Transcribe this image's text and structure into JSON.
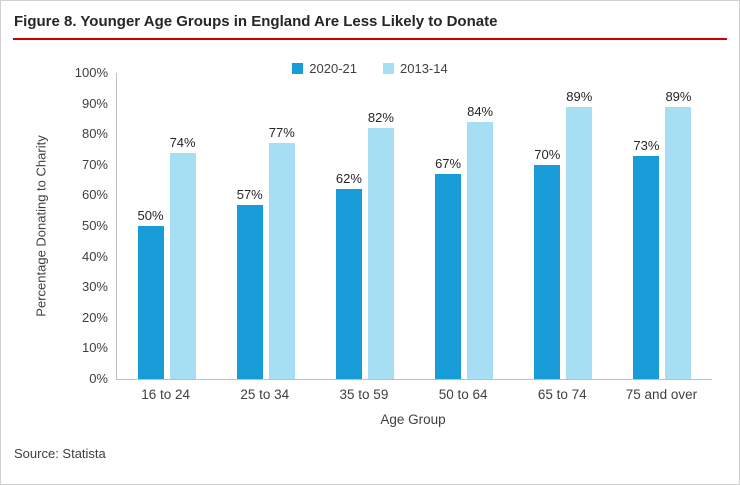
{
  "title": "Figure 8. Younger Age Groups in England Are Less Likely to Donate",
  "source": "Source: Statista",
  "colors": {
    "series1": "#189CD8",
    "series2": "#A6DFF4",
    "divider": "#CC0000",
    "axis": "#BFBFBF",
    "text": "#404040",
    "title_text": "#262626"
  },
  "chart_data": {
    "type": "bar",
    "title": "",
    "categories": [
      "16 to 24",
      "25 to 34",
      "35 to 59",
      "50 to 64",
      "65 to 74",
      "75 and over"
    ],
    "series": [
      {
        "name": "2020-21",
        "values": [
          50,
          57,
          62,
          67,
          70,
          73
        ],
        "color_key": "series1"
      },
      {
        "name": "2013-14",
        "values": [
          74,
          77,
          82,
          84,
          89,
          89
        ],
        "color_key": "series2"
      }
    ],
    "xlabel": "Age Group",
    "ylabel": "Percentage Donating to Charity",
    "ylim": [
      0,
      100
    ],
    "ytick_step": 10,
    "ytick_suffix": "%",
    "data_label_suffix": "%",
    "legend_position": "top-center",
    "grid": false
  }
}
